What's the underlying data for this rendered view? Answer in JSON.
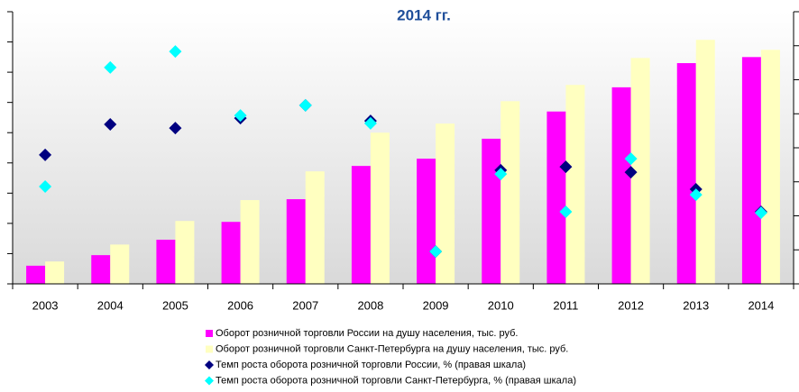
{
  "chart_data": {
    "type": "combo",
    "title": "2014 гг.",
    "categories": [
      "2003",
      "2004",
      "2005",
      "2006",
      "2007",
      "2008",
      "2009",
      "2010",
      "2011",
      "2012",
      "2013",
      "2014"
    ],
    "ylim": [
      0,
      9
    ],
    "yticks": [
      0,
      1,
      2,
      3,
      4,
      5,
      6,
      7,
      8,
      9
    ],
    "y2lim": [
      0,
      8
    ],
    "y2ticks": [
      0,
      1,
      2,
      3,
      4,
      5,
      6,
      7,
      8
    ],
    "series": [
      {
        "name": "Оборот розничной торговли России на душу населения, тыс. руб.",
        "type": "bar",
        "color": "#ff00ff",
        "values": [
          0.6,
          0.95,
          1.46,
          2.05,
          2.8,
          3.9,
          4.14,
          4.8,
          5.7,
          6.5,
          7.3,
          7.5
        ]
      },
      {
        "name": "Оборот розничной торговли Санкт-Петербурга на душу населения, тыс. руб.",
        "type": "bar",
        "color": "#ffffc0",
        "values": [
          0.74,
          1.3,
          2.08,
          2.77,
          3.72,
          5.0,
          5.3,
          6.04,
          6.58,
          7.47,
          8.07,
          7.74
        ]
      },
      {
        "name": "Темп роста оборота розничной торговли России, % (правая шкала)",
        "type": "scatter",
        "axis": "y2",
        "color": "#000080",
        "values": [
          3.79,
          4.69,
          4.58,
          4.87,
          5.25,
          4.79,
          0.95,
          3.34,
          3.44,
          3.28,
          2.78,
          2.12
        ]
      },
      {
        "name": "Темп роста оборота розничной торговли Санкт-Петербурга, % (правая шкала)",
        "type": "scatter",
        "axis": "y2",
        "color": "#00ffff",
        "values": [
          2.86,
          6.36,
          6.83,
          4.95,
          5.25,
          4.72,
          0.95,
          3.23,
          2.12,
          3.68,
          2.62,
          2.09
        ]
      }
    ]
  }
}
